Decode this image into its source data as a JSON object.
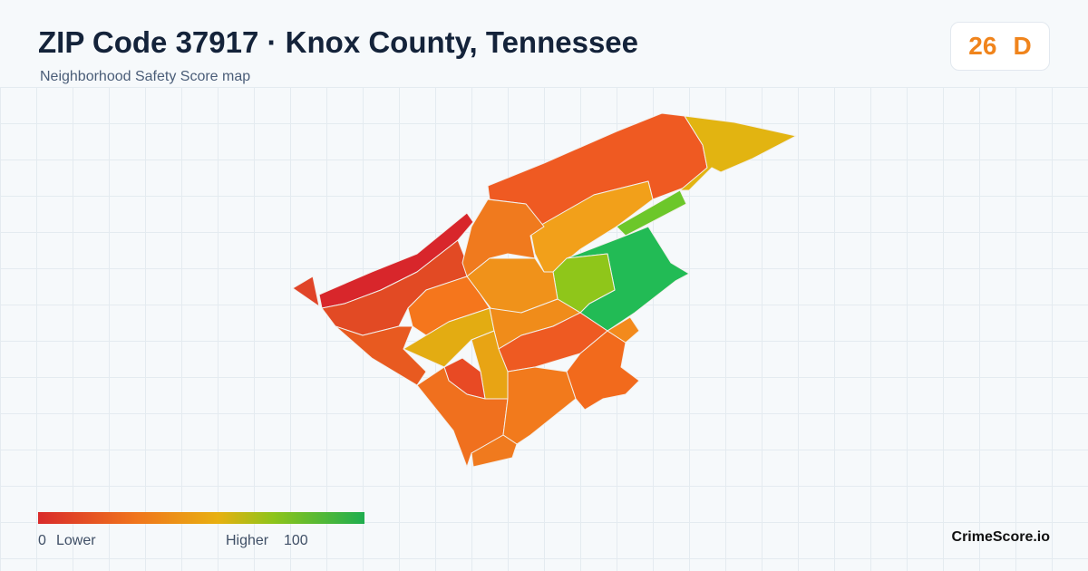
{
  "header": {
    "title": "ZIP Code 37917 · Knox County, Tennessee",
    "subtitle": "Neighborhood Safety Score map"
  },
  "score": {
    "value": "26",
    "grade": "D"
  },
  "legend": {
    "min": "0",
    "min_label": "Lower",
    "max_label": "Higher",
    "max": "100"
  },
  "brand": "CrimeScore.io"
}
